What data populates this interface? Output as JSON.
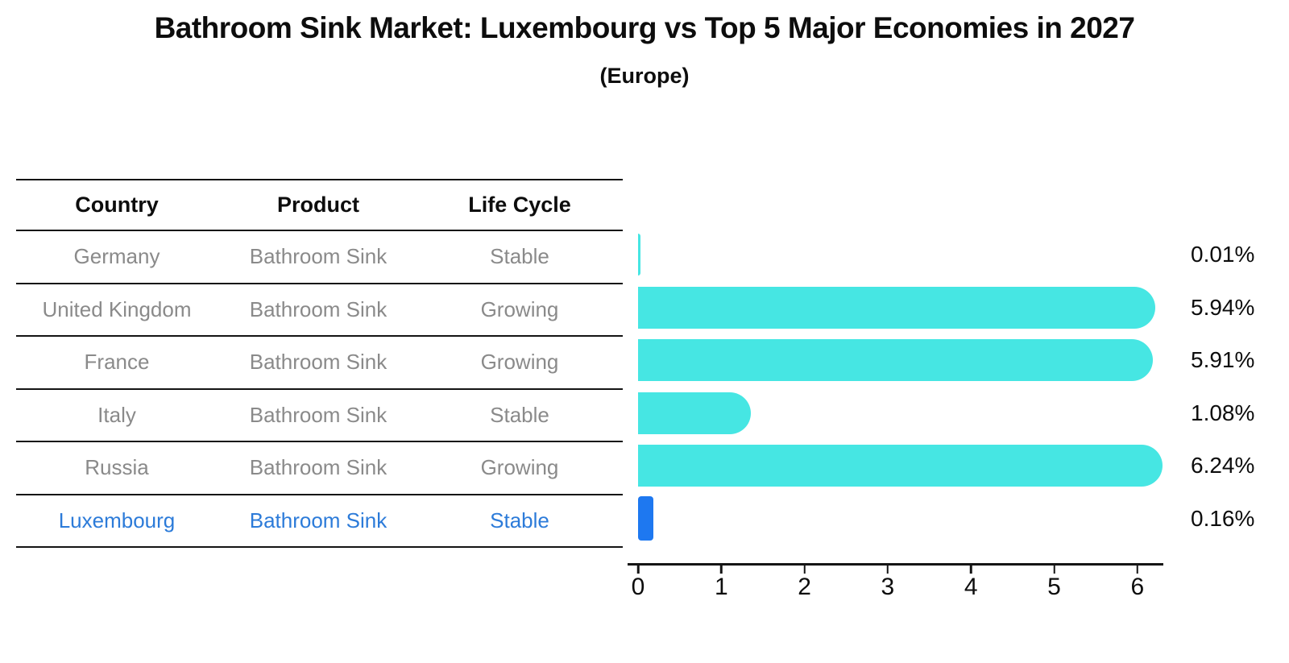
{
  "chart_data": {
    "type": "bar",
    "orientation": "horizontal",
    "title": "Bathroom Sink Market: Luxembourg vs Top 5 Major Economies in 2027",
    "subtitle": "(Europe)",
    "categories": [
      "Germany",
      "United Kingdom",
      "France",
      "Italy",
      "Russia",
      "Luxembourg"
    ],
    "values": [
      0.01,
      5.94,
      5.91,
      1.08,
      6.24,
      0.16
    ],
    "value_labels": [
      "0.01%",
      "5.94%",
      "5.91%",
      "1.08%",
      "6.24%",
      "0.16%"
    ],
    "highlight_index": 5,
    "xlim": [
      0,
      6.3
    ],
    "xticks": [
      "0",
      "1",
      "2",
      "3",
      "4",
      "5",
      "6"
    ],
    "grid": false,
    "legend": false,
    "colors": {
      "bar_default": "#46e6e3",
      "bar_highlight": "#1e78f0",
      "axis": "#141414"
    }
  },
  "table": {
    "headers": [
      "Country",
      "Product",
      "Life Cycle"
    ],
    "rows": [
      {
        "country": "Germany",
        "product": "Bathroom Sink",
        "life_cycle": "Stable"
      },
      {
        "country": "United Kingdom",
        "product": "Bathroom Sink",
        "life_cycle": "Growing"
      },
      {
        "country": "France",
        "product": "Bathroom Sink",
        "life_cycle": "Growing"
      },
      {
        "country": "Italy",
        "product": "Bathroom Sink",
        "life_cycle": "Stable"
      },
      {
        "country": "Russia",
        "product": "Bathroom Sink",
        "life_cycle": "Growing"
      },
      {
        "country": "Luxembourg",
        "product": "Bathroom Sink",
        "life_cycle": "Stable"
      }
    ],
    "text_colors": {
      "normal": "#8a8a8a",
      "highlight": "#2c7bd9",
      "header": "#0d0d0d"
    }
  }
}
